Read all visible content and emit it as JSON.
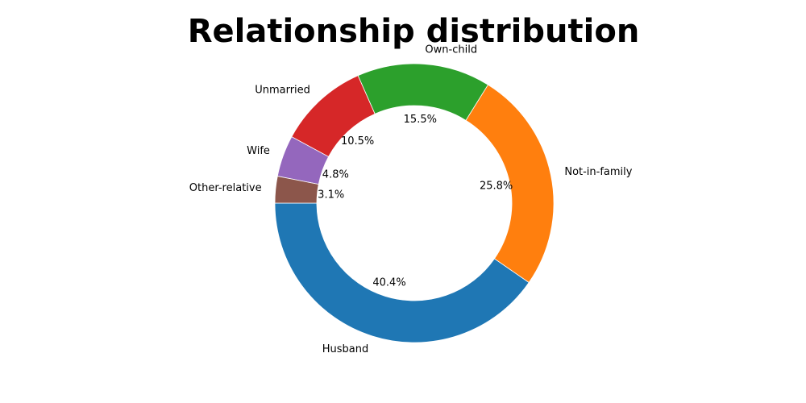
{
  "chart_data": {
    "type": "pie",
    "title": "Relationship distribution",
    "donut": true,
    "start_angle_deg": 180,
    "direction": "counterclockwise",
    "slices": [
      {
        "label": "Husband",
        "percent_label": "40.4%",
        "value": 40.4,
        "color": "#1f77b4"
      },
      {
        "label": "Not-in-family",
        "percent_label": "25.8%",
        "value": 25.8,
        "color": "#ff7f0e"
      },
      {
        "label": "Own-child",
        "percent_label": "15.5%",
        "value": 15.5,
        "color": "#2ca02c"
      },
      {
        "label": "Unmarried",
        "percent_label": "10.5%",
        "value": 10.5,
        "color": "#d62728"
      },
      {
        "label": "Wife",
        "percent_label": "4.8%",
        "value": 4.8,
        "color": "#9467bd"
      },
      {
        "label": "Other-relative",
        "percent_label": "3.1%",
        "value": 3.1,
        "color": "#8c564b"
      }
    ]
  }
}
